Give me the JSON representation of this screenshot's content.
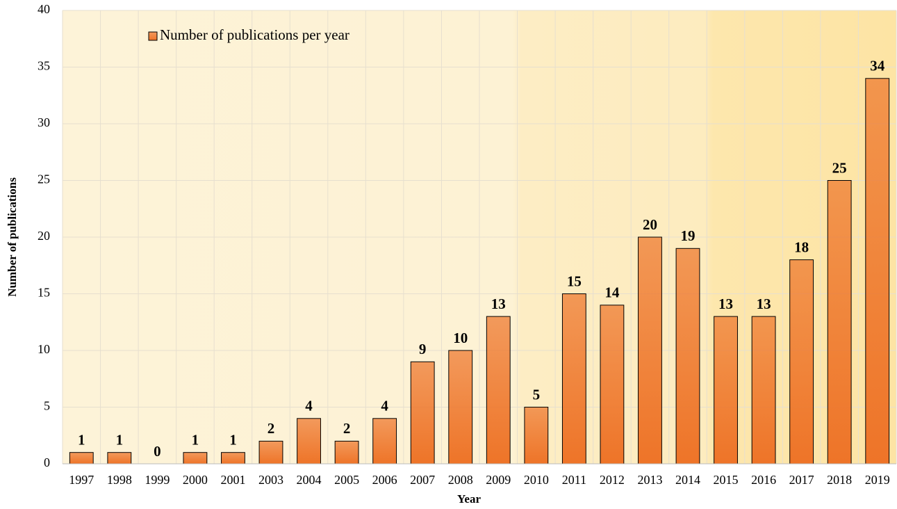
{
  "chart_data": {
    "type": "bar",
    "x_label": "Year",
    "y_label": "Number of publications",
    "categories": [
      "1997",
      "1998",
      "1999",
      "2000",
      "2001",
      "2003",
      "2004",
      "2005",
      "2006",
      "2007",
      "2008",
      "2009",
      "2010",
      "2011",
      "2012",
      "2013",
      "2014",
      "2015",
      "2016",
      "2017",
      "2018",
      "2019"
    ],
    "series": [
      {
        "name": "Number of publications per year",
        "color": "#ee7428",
        "values": [
          1,
          1,
          0,
          1,
          1,
          2,
          4,
          2,
          4,
          9,
          10,
          13,
          5,
          15,
          14,
          20,
          19,
          13,
          13,
          18,
          25,
          34
        ]
      }
    ],
    "ylim": [
      0,
      40
    ],
    "yticks": [
      0,
      5,
      10,
      15,
      20,
      25,
      30,
      35,
      40
    ],
    "grid": true,
    "legend": "top-left"
  }
}
